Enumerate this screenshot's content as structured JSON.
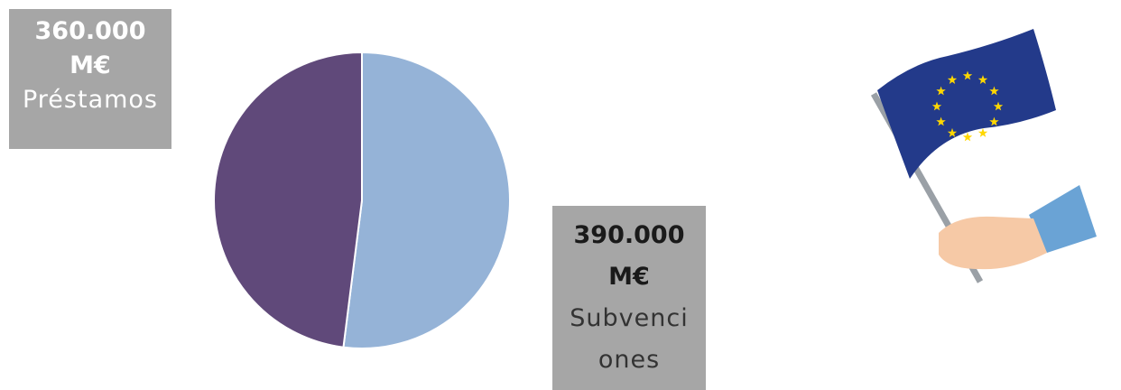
{
  "chart_data": {
    "type": "pie",
    "categories": [
      "Subvenciones",
      "Préstamos"
    ],
    "values": [
      390000,
      360000
    ],
    "value_labels": [
      "390.000",
      "360.000"
    ],
    "unit": "M€",
    "colors": [
      "#95b3d7",
      "#60497a"
    ]
  }
}
